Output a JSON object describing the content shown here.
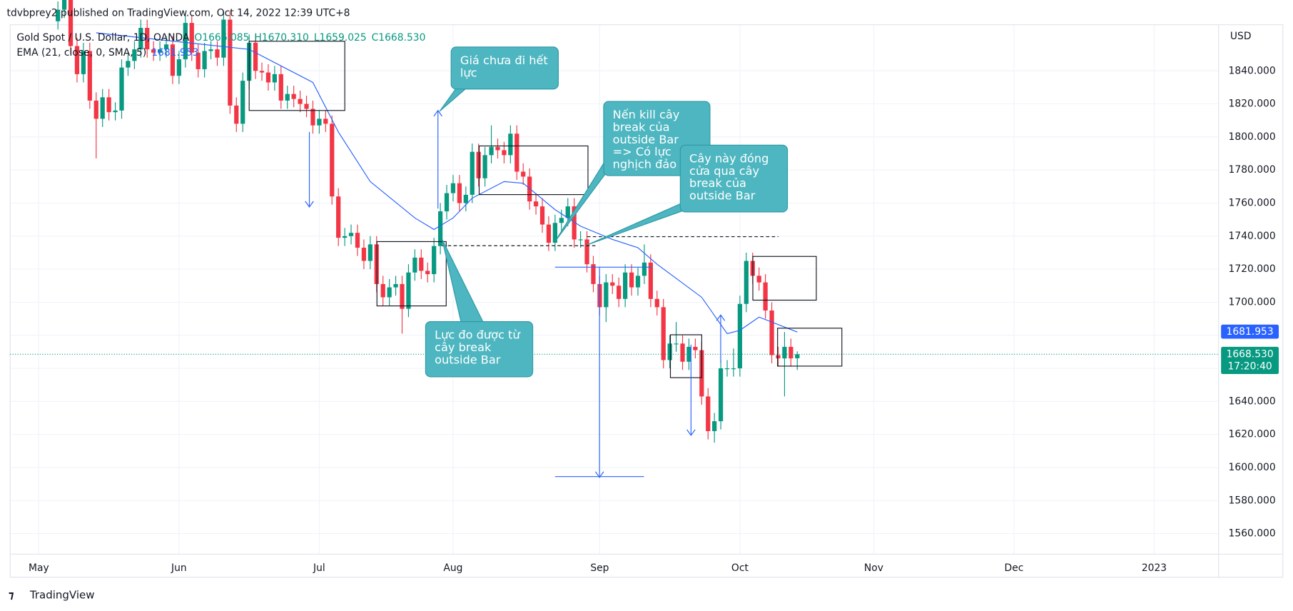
{
  "publisher": "tdvbprey2 published on TradingView.com, Oct 14, 2022 12:39 UTC+8",
  "brand": "TradingView",
  "chart_data": {
    "type": "candlestick",
    "title": "Gold Spot / U.S. Dollar, 1D, OANDA",
    "header_ohlc": [
      "O1666.085",
      "H1670.310",
      "L1659.025",
      "C1668.530"
    ],
    "y_label": "USD",
    "price_label": "1668.530",
    "countdown": "17:20:40",
    "colors": {
      "up": "#089981",
      "down": "#f23645"
    },
    "grid": true,
    "x": [
      3,
      4,
      5,
      6,
      7,
      8,
      9,
      10,
      11,
      12,
      13,
      14,
      15,
      16,
      17,
      18,
      19,
      20,
      21,
      22,
      23,
      24,
      25,
      26,
      27,
      28,
      29,
      30,
      31,
      32,
      33,
      34,
      35,
      36,
      37,
      38,
      39,
      40,
      41,
      42,
      43,
      44,
      45,
      46,
      47,
      48,
      49,
      50,
      51,
      52,
      53,
      54,
      55,
      56,
      57,
      58,
      59,
      60,
      61,
      62,
      63,
      64,
      65,
      66,
      67,
      68,
      69,
      70,
      71,
      72,
      73,
      74,
      75,
      76,
      77,
      78,
      79,
      80,
      81,
      82,
      83,
      84,
      85,
      86,
      87,
      88,
      89,
      90,
      91,
      92,
      93,
      94,
      95,
      96,
      97,
      98,
      99,
      100,
      101,
      102,
      103,
      104,
      105,
      106,
      107,
      108,
      109,
      110,
      111,
      112,
      113,
      114,
      115,
      116,
      117,
      118,
      119
    ],
    "open": [
      1870,
      1877,
      1883,
      1855,
      1838,
      1852,
      1822,
      1811,
      1824,
      1815,
      1816,
      1842,
      1846,
      1853,
      1866,
      1853,
      1851,
      1853,
      1856,
      1837,
      1847,
      1869,
      1851,
      1841,
      1852,
      1853,
      1848,
      1871,
      1819,
      1808,
      1834,
      1857,
      1840,
      1839,
      1833,
      1838,
      1822,
      1826,
      1823,
      1820,
      1817,
      1807,
      1811,
      1808,
      1764,
      1739,
      1740,
      1742,
      1733,
      1725,
      1735,
      1711,
      1703,
      1709,
      1711,
      1696,
      1718,
      1727,
      1719,
      1717,
      1734,
      1755,
      1766,
      1772,
      1760,
      1765,
      1791,
      1775,
      1789,
      1794,
      1792,
      1789,
      1802,
      1779,
      1776,
      1761,
      1758,
      1747,
      1736,
      1748,
      1751,
      1758,
      1738,
      1738,
      1723,
      1711,
      1697,
      1712,
      1710,
      1702,
      1718,
      1709,
      1716,
      1724,
      1702,
      1697,
      1665,
      1675,
      1675,
      1664,
      1673,
      1671,
      1643,
      1622,
      1628,
      1660,
      1660,
      1660,
      1699,
      1725,
      1716,
      1712,
      1695,
      1668,
      1666,
      1673,
      1666.085
    ],
    "high": [
      1882,
      1888,
      1888,
      1860,
      1857,
      1857,
      1827,
      1829,
      1829,
      1821,
      1847,
      1851,
      1858,
      1871,
      1871,
      1858,
      1858,
      1861,
      1861,
      1852,
      1874,
      1874,
      1856,
      1857,
      1858,
      1858,
      1876,
      1876,
      1824,
      1839,
      1862,
      1862,
      1845,
      1844,
      1843,
      1843,
      1831,
      1831,
      1828,
      1825,
      1822,
      1816,
      1816,
      1813,
      1769,
      1745,
      1747,
      1747,
      1738,
      1740,
      1740,
      1716,
      1714,
      1716,
      1716,
      1723,
      1732,
      1732,
      1724,
      1739,
      1760,
      1771,
      1777,
      1777,
      1770,
      1796,
      1796,
      1794,
      1807,
      1799,
      1797,
      1807,
      1807,
      1784,
      1781,
      1766,
      1763,
      1752,
      1753,
      1756,
      1763,
      1763,
      1743,
      1743,
      1728,
      1716,
      1717,
      1717,
      1715,
      1723,
      1723,
      1721,
      1735,
      1729,
      1707,
      1702,
      1680,
      1688,
      1680,
      1678,
      1678,
      1676,
      1648,
      1633,
      1665,
      1665,
      1672,
      1704,
      1730,
      1730,
      1721,
      1717,
      1700,
      1673,
      1682,
      1678,
      1670.31
    ],
    "low": [
      1865,
      1872,
      1850,
      1833,
      1833,
      1817,
      1787,
      1806,
      1810,
      1810,
      1811,
      1837,
      1841,
      1848,
      1848,
      1846,
      1846,
      1848,
      1832,
      1832,
      1842,
      1846,
      1836,
      1836,
      1847,
      1843,
      1843,
      1814,
      1803,
      1803,
      1829,
      1835,
      1834,
      1828,
      1828,
      1817,
      1817,
      1818,
      1815,
      1812,
      1802,
      1802,
      1803,
      1759,
      1734,
      1734,
      1735,
      1728,
      1720,
      1720,
      1706,
      1698,
      1698,
      1704,
      1681,
      1691,
      1713,
      1714,
      1712,
      1712,
      1729,
      1750,
      1761,
      1755,
      1755,
      1760,
      1770,
      1770,
      1784,
      1787,
      1784,
      1784,
      1774,
      1771,
      1756,
      1753,
      1742,
      1731,
      1731,
      1743,
      1746,
      1733,
      1733,
      1718,
      1706,
      1692,
      1688,
      1705,
      1697,
      1697,
      1704,
      1704,
      1711,
      1697,
      1692,
      1660,
      1660,
      1670,
      1659,
      1659,
      1666,
      1638,
      1617,
      1615,
      1623,
      1655,
      1655,
      1655,
      1694,
      1711,
      1707,
      1690,
      1663,
      1661,
      1643,
      1661,
      1659.025
    ],
    "close": [
      1877,
      1883,
      1855,
      1838,
      1852,
      1822,
      1811,
      1824,
      1815,
      1816,
      1842,
      1846,
      1853,
      1866,
      1853,
      1851,
      1853,
      1856,
      1837,
      1847,
      1869,
      1851,
      1841,
      1852,
      1853,
      1848,
      1871,
      1819,
      1808,
      1834,
      1857,
      1840,
      1839,
      1833,
      1838,
      1822,
      1826,
      1823,
      1820,
      1817,
      1807,
      1811,
      1808,
      1764,
      1739,
      1740,
      1742,
      1733,
      1725,
      1735,
      1711,
      1703,
      1709,
      1711,
      1696,
      1718,
      1727,
      1719,
      1717,
      1734,
      1755,
      1766,
      1772,
      1760,
      1765,
      1791,
      1775,
      1789,
      1794,
      1792,
      1789,
      1802,
      1779,
      1776,
      1761,
      1758,
      1747,
      1736,
      1748,
      1751,
      1758,
      1738,
      1738,
      1723,
      1711,
      1697,
      1712,
      1710,
      1702,
      1718,
      1709,
      1716,
      1724,
      1702,
      1697,
      1665,
      1675,
      1675,
      1664,
      1673,
      1671,
      1643,
      1622,
      1628,
      1660,
      1660,
      1660,
      1699,
      1725,
      1716,
      1712,
      1695,
      1668,
      1666,
      1673,
      1666,
      1668.53
    ],
    "overlays": [
      {
        "name": "EMA (21, close, 0, SMA, 5)",
        "color": "#2962ff",
        "x": [
          9,
          33,
          38,
          43,
          47,
          52,
          59,
          62,
          65,
          68,
          73,
          76,
          81,
          85,
          90,
          94,
          97,
          104,
          108,
          110,
          113,
          119
        ],
        "values": [
          1863,
          1853,
          1843,
          1833,
          1803,
          1773,
          1751,
          1744,
          1751,
          1763,
          1773,
          1772,
          1756,
          1746,
          1738,
          1733,
          1723,
          1703,
          1681,
          1683,
          1691,
          1681.953
        ]
      }
    ],
    "xlim": [
      -4.5,
      185.1
    ],
    "xticks": [
      {
        "value": 0,
        "label": "May"
      },
      {
        "value": 22,
        "label": "Jun"
      },
      {
        "value": 44,
        "label": "Jul"
      },
      {
        "value": 65,
        "label": "Aug"
      },
      {
        "value": 88,
        "label": "Sep"
      },
      {
        "value": 110,
        "label": "Oct"
      },
      {
        "value": 131,
        "label": "Nov"
      },
      {
        "value": 153,
        "label": "Dec"
      },
      {
        "value": 175,
        "label": "2023"
      }
    ],
    "ylim": [
      1547.6,
      1867.9
    ],
    "yticks": [
      {
        "value": 1560,
        "label": "1560.000"
      },
      {
        "value": 1580,
        "label": "1580.000"
      },
      {
        "value": 1600,
        "label": "1600.000"
      },
      {
        "value": 1620,
        "label": "1620.000"
      },
      {
        "value": 1640,
        "label": "1640.000"
      },
      {
        "value": 1660,
        "label": "1660.000"
      },
      {
        "value": 1680,
        "label": "1680.000"
      },
      {
        "value": 1700,
        "label": "1700.000"
      },
      {
        "value": 1720,
        "label": "1720.000"
      },
      {
        "value": 1740,
        "label": "1740.000"
      },
      {
        "value": 1760,
        "label": "1760.000"
      },
      {
        "value": 1780,
        "label": "1780.000"
      },
      {
        "value": 1800,
        "label": "1800.000"
      },
      {
        "value": 1820,
        "label": "1820.000"
      },
      {
        "value": 1840,
        "label": "1840.000"
      }
    ],
    "annotations": [
      {
        "lines": [
          "Giá chưa đi hết",
          "lực"
        ]
      },
      {
        "lines": [
          "Nến kill cây",
          "break của",
          "outside Bar",
          "=> Có lực",
          "nghịch đảo"
        ]
      },
      {
        "lines": [
          "Cây này đóng",
          "cửa qua cây",
          "break của",
          "outside Bar"
        ]
      },
      {
        "lines": [
          "Lực đo được từ",
          "cây break",
          "outside Bar"
        ]
      }
    ]
  }
}
